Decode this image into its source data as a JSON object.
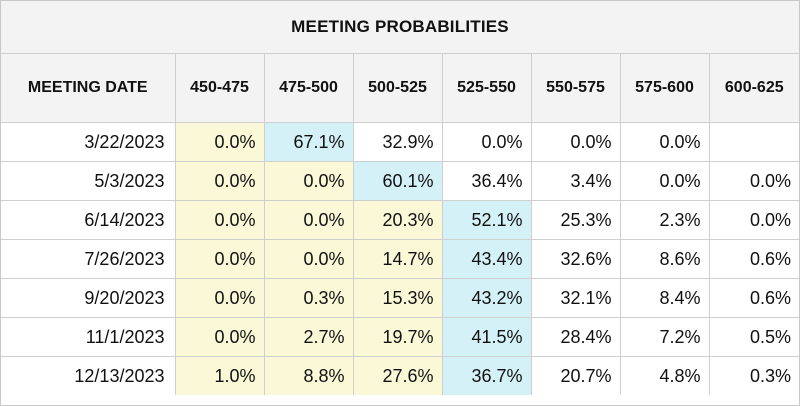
{
  "title": "MEETING PROBABILITIES",
  "columns": [
    "MEETING DATE",
    "450-475",
    "475-500",
    "500-525",
    "525-550",
    "550-575",
    "575-600",
    "600-625"
  ],
  "rows": [
    {
      "date": "3/22/2023",
      "cells": [
        {
          "v": "0.0%",
          "c": "yellow"
        },
        {
          "v": "67.1%",
          "c": "blue"
        },
        {
          "v": "32.9%",
          "c": "white"
        },
        {
          "v": "0.0%",
          "c": "white"
        },
        {
          "v": "0.0%",
          "c": "white"
        },
        {
          "v": "0.0%",
          "c": "white"
        },
        {
          "v": "",
          "c": "white"
        }
      ]
    },
    {
      "date": "5/3/2023",
      "cells": [
        {
          "v": "0.0%",
          "c": "yellow"
        },
        {
          "v": "0.0%",
          "c": "yellow"
        },
        {
          "v": "60.1%",
          "c": "blue"
        },
        {
          "v": "36.4%",
          "c": "white"
        },
        {
          "v": "3.4%",
          "c": "white"
        },
        {
          "v": "0.0%",
          "c": "white"
        },
        {
          "v": "0.0%",
          "c": "white"
        }
      ]
    },
    {
      "date": "6/14/2023",
      "cells": [
        {
          "v": "0.0%",
          "c": "yellow"
        },
        {
          "v": "0.0%",
          "c": "yellow"
        },
        {
          "v": "20.3%",
          "c": "yellow"
        },
        {
          "v": "52.1%",
          "c": "blue"
        },
        {
          "v": "25.3%",
          "c": "white"
        },
        {
          "v": "2.3%",
          "c": "white"
        },
        {
          "v": "0.0%",
          "c": "white"
        }
      ]
    },
    {
      "date": "7/26/2023",
      "cells": [
        {
          "v": "0.0%",
          "c": "yellow"
        },
        {
          "v": "0.0%",
          "c": "yellow"
        },
        {
          "v": "14.7%",
          "c": "yellow"
        },
        {
          "v": "43.4%",
          "c": "blue"
        },
        {
          "v": "32.6%",
          "c": "white"
        },
        {
          "v": "8.6%",
          "c": "white"
        },
        {
          "v": "0.6%",
          "c": "white"
        }
      ]
    },
    {
      "date": "9/20/2023",
      "cells": [
        {
          "v": "0.0%",
          "c": "yellow"
        },
        {
          "v": "0.3%",
          "c": "yellow"
        },
        {
          "v": "15.3%",
          "c": "yellow"
        },
        {
          "v": "43.2%",
          "c": "blue"
        },
        {
          "v": "32.1%",
          "c": "white"
        },
        {
          "v": "8.4%",
          "c": "white"
        },
        {
          "v": "0.6%",
          "c": "white"
        }
      ]
    },
    {
      "date": "11/1/2023",
      "cells": [
        {
          "v": "0.0%",
          "c": "yellow"
        },
        {
          "v": "2.7%",
          "c": "yellow"
        },
        {
          "v": "19.7%",
          "c": "yellow"
        },
        {
          "v": "41.5%",
          "c": "blue"
        },
        {
          "v": "28.4%",
          "c": "white"
        },
        {
          "v": "7.2%",
          "c": "white"
        },
        {
          "v": "0.5%",
          "c": "white"
        }
      ]
    },
    {
      "date": "12/13/2023",
      "cells": [
        {
          "v": "1.0%",
          "c": "yellow"
        },
        {
          "v": "8.8%",
          "c": "yellow"
        },
        {
          "v": "27.6%",
          "c": "yellow"
        },
        {
          "v": "36.7%",
          "c": "blue"
        },
        {
          "v": "20.7%",
          "c": "white"
        },
        {
          "v": "4.8%",
          "c": "white"
        },
        {
          "v": "0.3%",
          "c": "white"
        }
      ]
    }
  ],
  "colors": {
    "header_bg": "#f3f3f3",
    "yellow": "#fbf8d8",
    "blue": "#d4f1f8",
    "border": "#cfcfcf"
  }
}
